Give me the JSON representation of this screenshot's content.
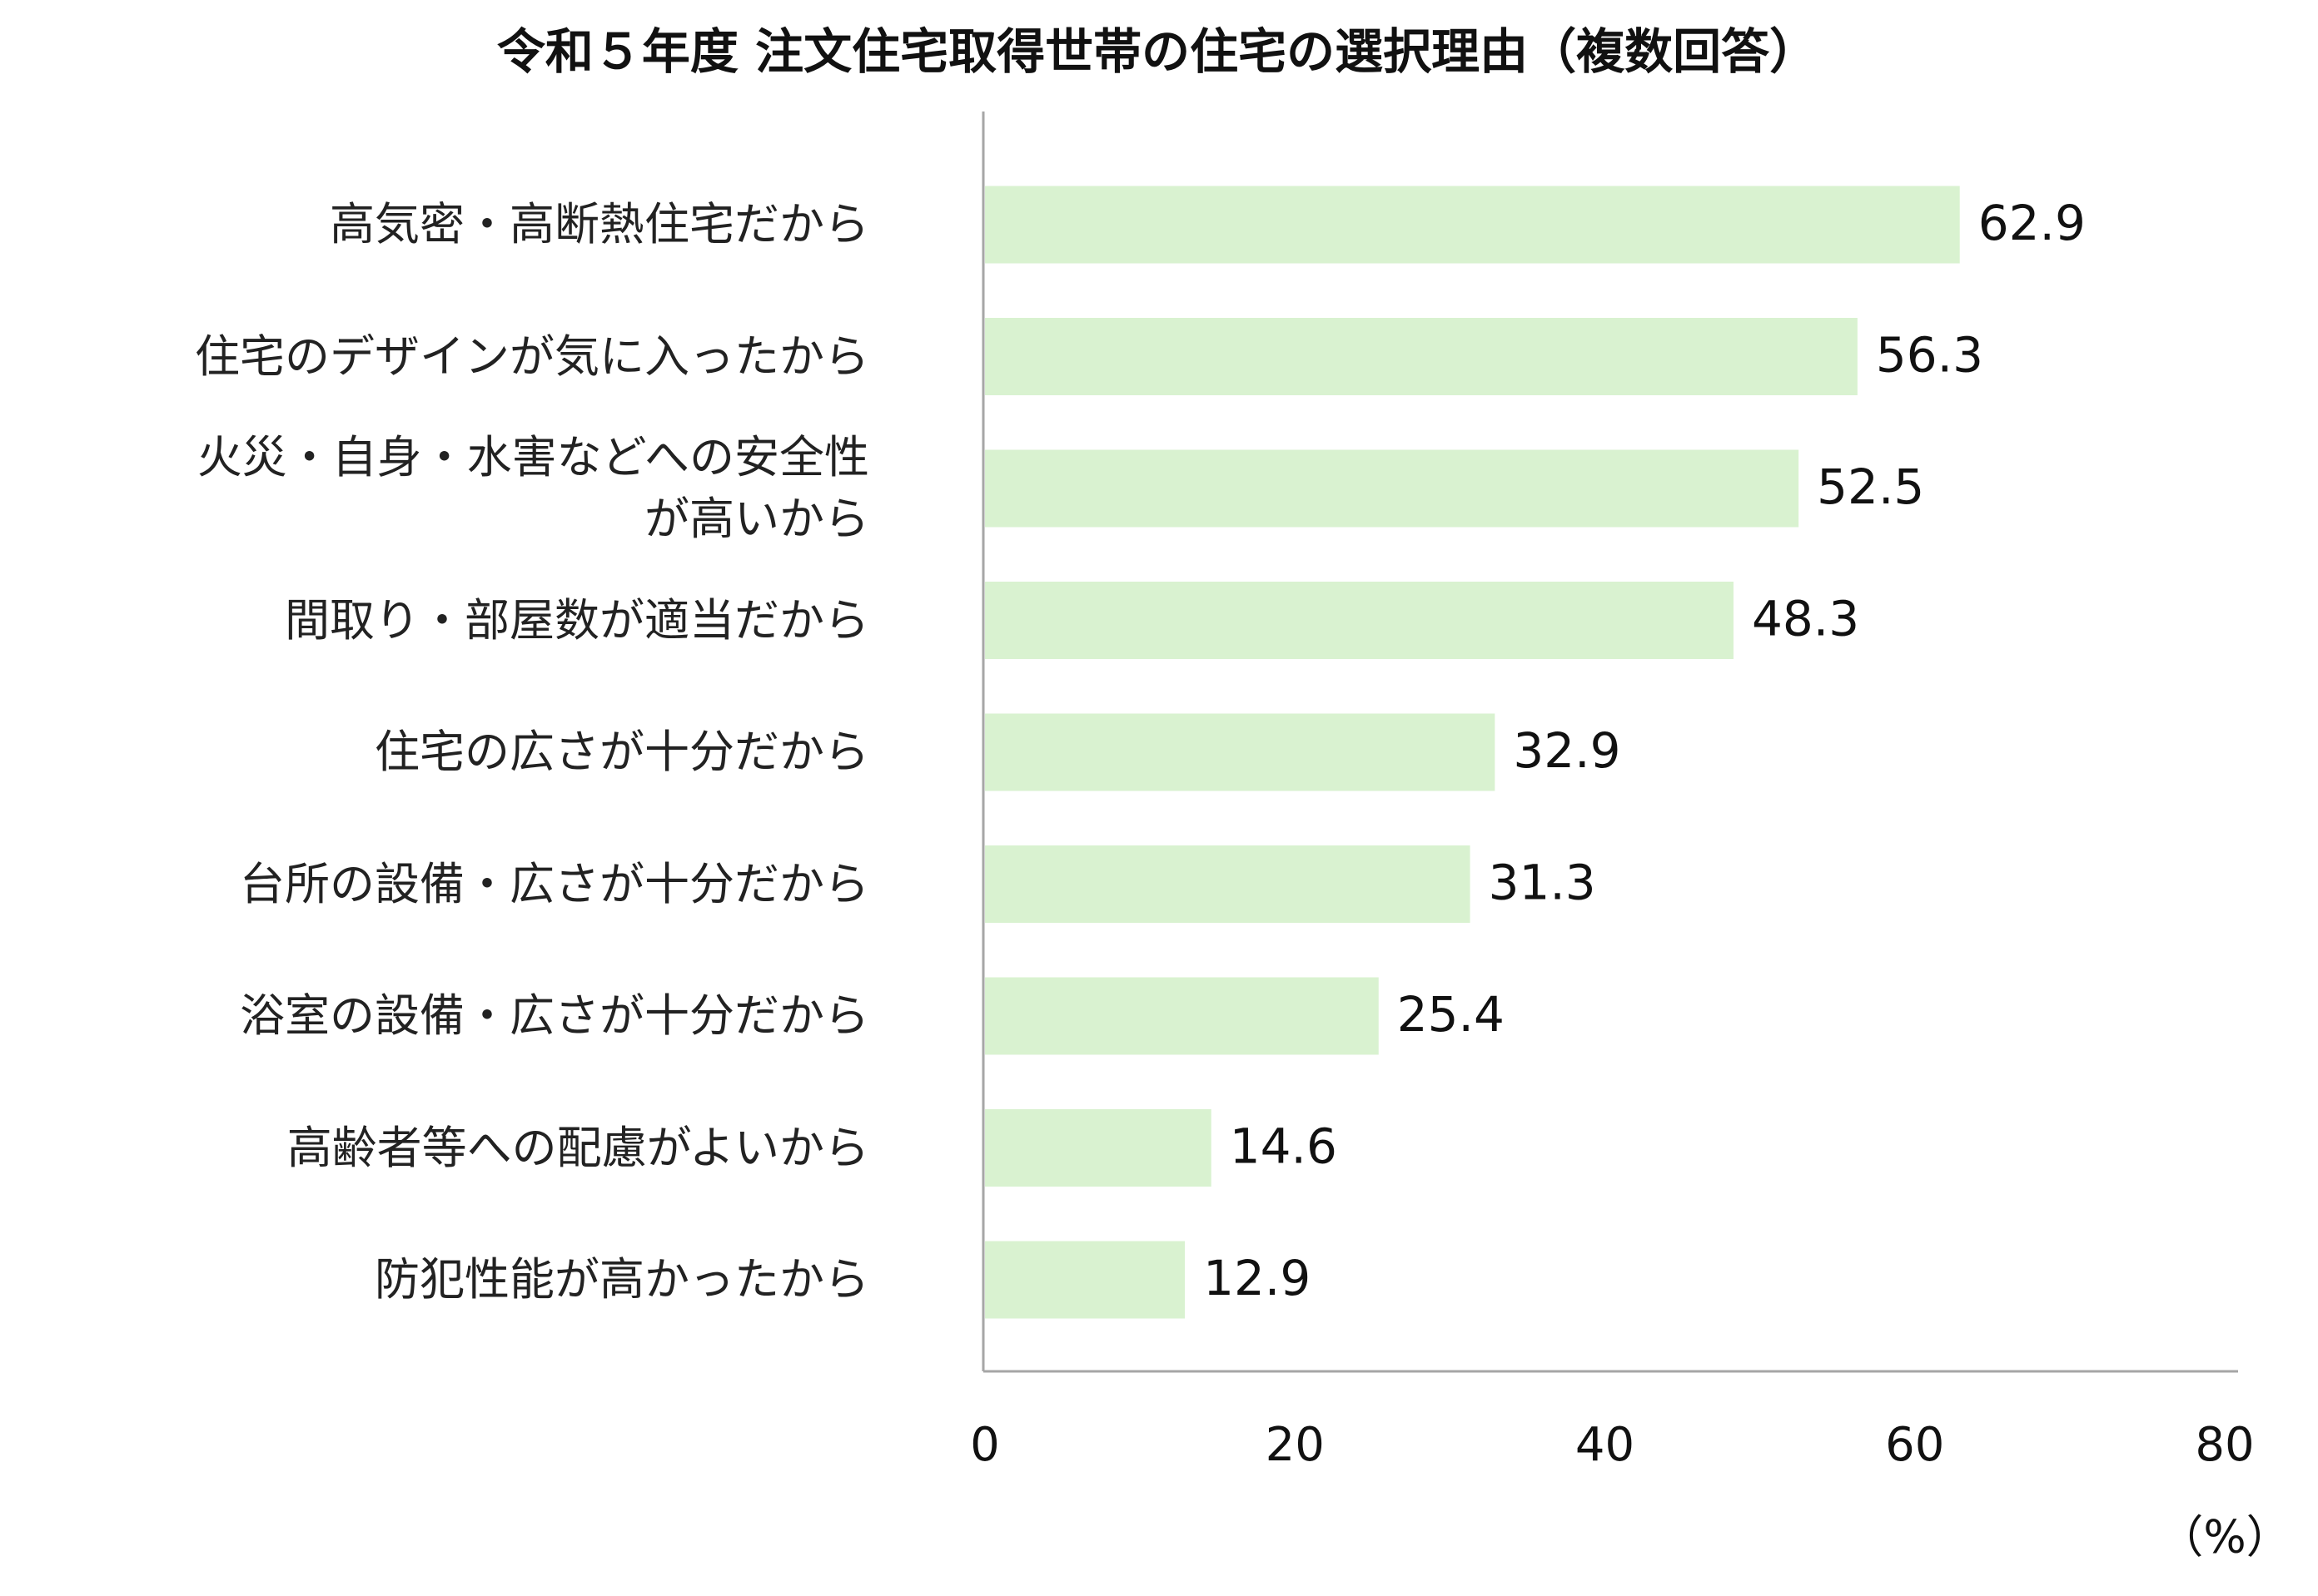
{
  "chart_data": {
    "type": "barh",
    "title": "令和５年度 注文住宅取得世帯の住宅の選択理由（複数回答）",
    "categories": [
      "高気密・高断熱住宅だから",
      "住宅のデザインが気に入ったから",
      "火災・自身・水害などへの安全性\nが高いから",
      "間取り・部屋数が適当だから",
      "住宅の広さが十分だから",
      "台所の設備・広さが十分だから",
      "浴室の設備・広さが十分だから",
      "高齢者等への配慮がよいから",
      "防犯性能が高かったから"
    ],
    "values": [
      62.9,
      56.3,
      52.5,
      48.3,
      32.9,
      31.3,
      25.4,
      14.6,
      12.9
    ],
    "color": "#d9f2d0",
    "xlim": [
      0,
      80
    ],
    "xticks": [
      0,
      20,
      40,
      60,
      80
    ],
    "xlabel": "（%）",
    "grid": false
  }
}
